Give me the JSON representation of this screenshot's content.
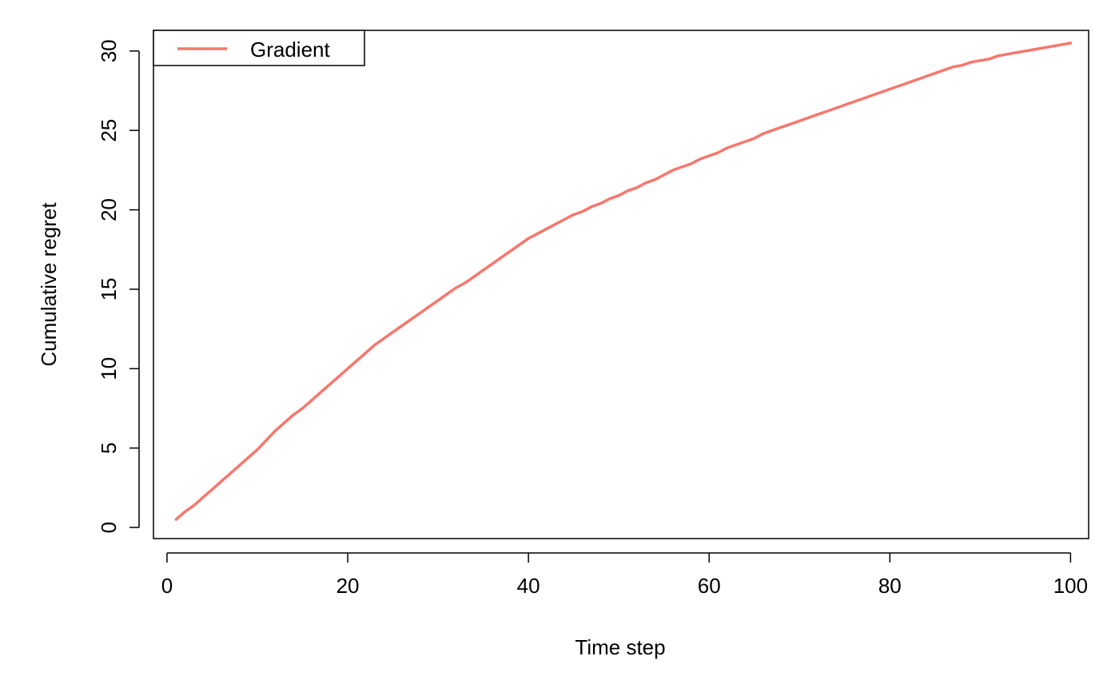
{
  "chart_data": {
    "type": "line",
    "xlabel": "Time step",
    "ylabel": "Cumulative regret",
    "xlim": [
      -1.5,
      102
    ],
    "ylim": [
      -0.7,
      31.3
    ],
    "x_ticks": [
      0,
      20,
      40,
      60,
      80,
      100
    ],
    "y_ticks": [
      0,
      5,
      10,
      15,
      20,
      25,
      30
    ],
    "grid": false,
    "legend_position": "top-left",
    "series": [
      {
        "name": "Gradient",
        "color": "#F8766D",
        "x": [
          1,
          2,
          3,
          4,
          5,
          6,
          7,
          8,
          9,
          10,
          11,
          12,
          13,
          14,
          15,
          16,
          17,
          18,
          19,
          20,
          21,
          22,
          23,
          24,
          25,
          26,
          27,
          28,
          29,
          30,
          31,
          32,
          33,
          34,
          35,
          36,
          37,
          38,
          39,
          40,
          41,
          42,
          43,
          44,
          45,
          46,
          47,
          48,
          49,
          50,
          51,
          52,
          53,
          54,
          55,
          56,
          57,
          58,
          59,
          60,
          61,
          62,
          63,
          64,
          65,
          66,
          67,
          68,
          69,
          70,
          71,
          72,
          73,
          74,
          75,
          76,
          77,
          78,
          79,
          80,
          81,
          82,
          83,
          84,
          85,
          86,
          87,
          88,
          89,
          90,
          91,
          92,
          93,
          94,
          95,
          96,
          97,
          98,
          99,
          100
        ],
        "values": [
          0.5,
          1.0,
          1.4,
          1.9,
          2.4,
          2.9,
          3.4,
          3.9,
          4.4,
          4.9,
          5.5,
          6.1,
          6.6,
          7.1,
          7.5,
          8.0,
          8.5,
          9.0,
          9.5,
          10.0,
          10.5,
          11.0,
          11.5,
          11.9,
          12.3,
          12.7,
          13.1,
          13.5,
          13.9,
          14.3,
          14.7,
          15.1,
          15.4,
          15.8,
          16.2,
          16.6,
          17.0,
          17.4,
          17.8,
          18.2,
          18.5,
          18.8,
          19.1,
          19.4,
          19.7,
          19.9,
          20.2,
          20.4,
          20.7,
          20.9,
          21.2,
          21.4,
          21.7,
          21.9,
          22.2,
          22.5,
          22.7,
          22.9,
          23.2,
          23.4,
          23.6,
          23.9,
          24.1,
          24.3,
          24.5,
          24.8,
          25.0,
          25.2,
          25.4,
          25.6,
          25.8,
          26.0,
          26.2,
          26.4,
          26.6,
          26.8,
          27.0,
          27.2,
          27.4,
          27.6,
          27.8,
          28.0,
          28.2,
          28.4,
          28.6,
          28.8,
          29.0,
          29.1,
          29.3,
          29.4,
          29.5,
          29.7,
          29.8,
          29.9,
          30.0,
          30.1,
          30.2,
          30.3,
          30.4,
          30.5
        ]
      }
    ]
  }
}
